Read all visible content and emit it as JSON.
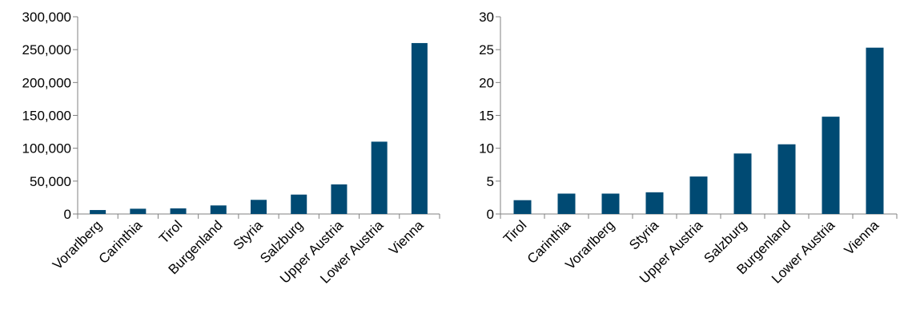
{
  "colors": {
    "bar": "#004a73",
    "axis": "#808080"
  },
  "chart_data": [
    {
      "type": "bar",
      "categories": [
        "Vorarlberg",
        "Carinthia",
        "Tirol",
        "Burgenland",
        "Styria",
        "Salzburg",
        "Upper Austria",
        "Lower Austria",
        "Vienna"
      ],
      "values": [
        6000,
        8000,
        8500,
        13000,
        21500,
        29500,
        45000,
        110000,
        260000
      ],
      "ylim": [
        0,
        300000
      ],
      "yticks": [
        0,
        50000,
        100000,
        150000,
        200000,
        250000,
        300000
      ],
      "ytick_labels": [
        "0",
        "50,000",
        "100,000",
        "150,000",
        "200,000",
        "250,000",
        "300,000"
      ],
      "grid": false,
      "legend": "none"
    },
    {
      "type": "bar",
      "categories": [
        "Tirol",
        "Carinthia",
        "Vorarlberg",
        "Styria",
        "Upper Austria",
        "Salzburg",
        "Burgenland",
        "Lower Austria",
        "Vienna"
      ],
      "values": [
        2.1,
        3.1,
        3.1,
        3.3,
        5.7,
        9.2,
        10.6,
        14.8,
        25.3
      ],
      "ylim": [
        0,
        30
      ],
      "yticks": [
        0,
        5,
        10,
        15,
        20,
        25,
        30
      ],
      "ytick_labels": [
        "0",
        "5",
        "10",
        "15",
        "20",
        "25",
        "30"
      ],
      "grid": false,
      "legend": "none"
    }
  ]
}
